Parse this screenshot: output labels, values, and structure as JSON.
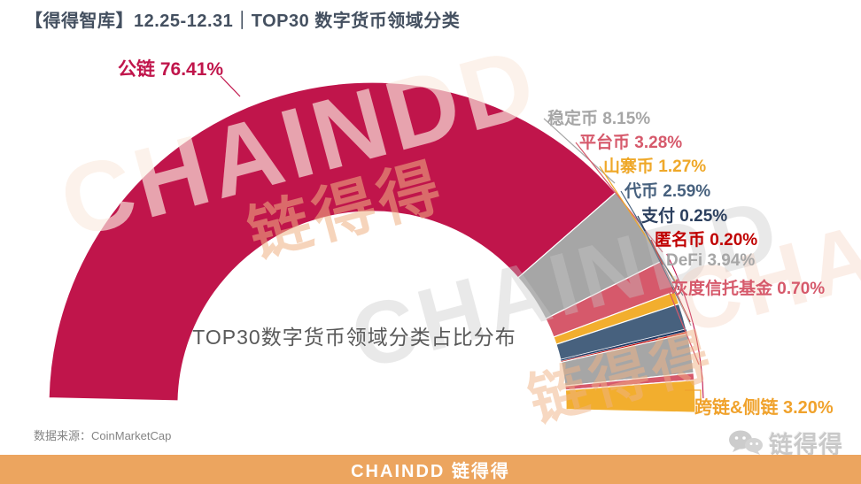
{
  "header": {
    "title": "【得得智库】12.25-12.31｜TOP30 数字货币领域分类"
  },
  "chart_data": {
    "type": "pie",
    "variant": "half-donut",
    "title": "TOP30数字货币领域分类占比分布",
    "unit": "%",
    "total_span_degrees": 180,
    "legend_position": "outside-callouts",
    "segments": [
      {
        "label": "公链",
        "value": 76.41,
        "pct": "76.41%",
        "color": "#C0154B",
        "label_color": "#C0154B"
      },
      {
        "label": "稳定币",
        "value": 8.15,
        "pct": "8.15%",
        "color": "#A6A6A6",
        "label_color": "#A6A6A6"
      },
      {
        "label": "平台币",
        "value": 3.28,
        "pct": "3.28%",
        "color": "#D6596B",
        "label_color": "#D6596B"
      },
      {
        "label": "山寨币",
        "value": 1.27,
        "pct": "1.27%",
        "color": "#F2AE2E",
        "label_color": "#EFA829"
      },
      {
        "label": "代币",
        "value": 2.59,
        "pct": "2.59%",
        "color": "#47617E",
        "label_color": "#47617E"
      },
      {
        "label": "支付",
        "value": 0.25,
        "pct": "0.25%",
        "color": "#1F3864",
        "label_color": "#2B3F5E"
      },
      {
        "label": "匿名币",
        "value": 0.2,
        "pct": "0.20%",
        "color": "#C00000",
        "label_color": "#C00000"
      },
      {
        "label": "DeFi",
        "value": 3.94,
        "pct": "3.94%",
        "color": "#A6A6A6",
        "label_color": "#A6A6A6"
      },
      {
        "label": "灰度信托基金",
        "value": 0.7,
        "pct": "0.70%",
        "color": "#D6596B",
        "label_color": "#D6596B"
      },
      {
        "label": "跨链&侧链",
        "value": 3.2,
        "pct": "3.20%",
        "color": "#F2AE2E",
        "label_color": "#F0A22C"
      }
    ],
    "source_note": "数据来源：CoinMarketCap"
  },
  "watermark": {
    "brand_en": "CHAINDD",
    "brand_cn": "链得得"
  },
  "footer": {
    "bar_text": "CHAINDD 链得得",
    "bar_color": "#ECA55F",
    "logo_text": "链得得"
  }
}
